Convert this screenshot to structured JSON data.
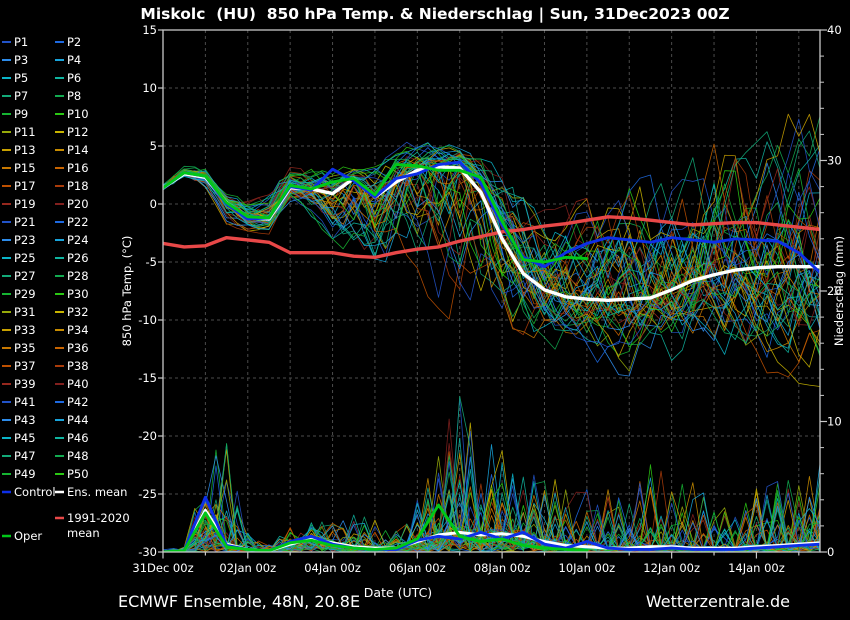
{
  "title": "Miskolc  (HU)  850 hPa Temp. & Niederschlag | Sun, 31Dec2023 00Z",
  "footer": {
    "left": "ECMWF Ensemble, 48N, 20.8E",
    "right": "Wetterzentrale.de"
  },
  "axes": {
    "x_title": "Date (UTC)",
    "x_tick_labels": [
      "31Dec 00z",
      "02Jan 00z",
      "04Jan 00z",
      "06Jan 00z",
      "08Jan 00z",
      "10Jan 00z",
      "12Jan 00z",
      "14Jan 00z"
    ],
    "y_left_title": "850 hPa Temp. (°C)",
    "y_left_ticks": [
      15,
      10,
      5,
      0,
      -5,
      -10,
      -15,
      -20,
      -25,
      -30
    ],
    "y_right_title": "Niederschlag (mm)",
    "y_right_ticks": [
      0,
      10,
      20,
      30,
      40
    ]
  },
  "legend": {
    "member_labels": [
      "P1",
      "P2",
      "P3",
      "P4",
      "P5",
      "P6",
      "P7",
      "P8",
      "P9",
      "P10",
      "P11",
      "P12",
      "P13",
      "P14",
      "P15",
      "P16",
      "P17",
      "P18",
      "P19",
      "P20",
      "P21",
      "P22",
      "P23",
      "P24",
      "P25",
      "P26",
      "P27",
      "P28",
      "P29",
      "P30",
      "P31",
      "P32",
      "P33",
      "P34",
      "P35",
      "P36",
      "P37",
      "P38",
      "P39",
      "P40",
      "P41",
      "P42",
      "P43",
      "P44",
      "P45",
      "P46",
      "P47",
      "P48",
      "P49",
      "P50"
    ],
    "control_label": "Control",
    "ens_mean_label": "Ens. mean",
    "climate_label_line1": "1991-2020",
    "climate_label_line2": "mean",
    "oper_label": "Oper"
  },
  "colors": {
    "background": "#000000",
    "frame": "#c8c8c8",
    "grid": "#4b4b4b",
    "text": "#ffffff",
    "control": "#0d2fe8",
    "ens_mean": "#ffffff",
    "climate": "#e84848",
    "oper": "#00c818",
    "member_palette": [
      "#2253c8",
      "#1e6ae1",
      "#2d8ceb",
      "#18a4dc",
      "#0ab4c8",
      "#0fb4a0",
      "#12aa78",
      "#12aa50",
      "#16b432",
      "#2bc814",
      "#96aa0a",
      "#c8b400",
      "#c8a000",
      "#c88c00",
      "#c87800",
      "#c86400",
      "#be5000",
      "#aa3c0a",
      "#96281e",
      "#82201e"
    ]
  },
  "chart_data": {
    "type": "line",
    "x_unit": "days since Sun 31Dec2023 00Z",
    "x_step_days": 0.5,
    "x_range_days": [
      0,
      15.5
    ],
    "temp_axis_range": [
      -30,
      15
    ],
    "precip_axis_range": [
      0,
      40
    ],
    "n_members": 50,
    "seed": 12345,
    "temp_series": {
      "ens_mean": [
        1.4,
        2.6,
        2.3,
        0.1,
        -1.2,
        -1.3,
        1.4,
        1.3,
        0.9,
        2.2,
        0.6,
        1.9,
        2.9,
        3.2,
        3.1,
        1.0,
        -3.0,
        -6.0,
        -7.4,
        -8.0,
        -8.2,
        -8.3,
        -8.2,
        -8.1,
        -7.4,
        -6.6,
        -6.1,
        -5.7,
        -5.5,
        -5.4,
        -5.4,
        -5.4
      ],
      "control": [
        1.4,
        2.7,
        2.4,
        0.0,
        -1.3,
        -1.2,
        1.5,
        1.2,
        3.0,
        2.0,
        0.6,
        2.2,
        2.6,
        3.4,
        3.6,
        1.8,
        -1.8,
        -4.6,
        -5.4,
        -4.2,
        -3.4,
        -2.9,
        -3.1,
        -3.3,
        -2.9,
        -3.1,
        -3.3,
        -3.0,
        -3.1,
        -3.2,
        -4.2,
        -5.9
      ],
      "oper": [
        1.4,
        2.7,
        2.4,
        0.1,
        -1.1,
        -1.2,
        1.6,
        1.3,
        1.9,
        2.2,
        0.8,
        3.4,
        3.3,
        2.9,
        2.9,
        2.3,
        -1.5,
        -4.8,
        -5.0,
        -4.6,
        -4.7
      ],
      "climate_mean_1991_2020": [
        -3.4,
        -3.7,
        -3.6,
        -2.9,
        -3.1,
        -3.3,
        -4.2,
        -4.2,
        -4.2,
        -4.5,
        -4.6,
        -4.2,
        -3.9,
        -3.7,
        -3.2,
        -2.8,
        -2.4,
        -2.2,
        -1.9,
        -1.7,
        -1.4,
        -1.1,
        -1.2,
        -1.4,
        -1.6,
        -1.8,
        -1.7,
        -1.6,
        -1.6,
        -1.8,
        -2.0,
        -2.2
      ],
      "envelope_min": [
        1.1,
        2.3,
        1.2,
        -1.8,
        -2.4,
        -2.6,
        0.2,
        -1.5,
        -3.0,
        -5.0,
        -6.5,
        -6.0,
        -7.0,
        -9.0,
        -11.0,
        -11.5,
        -12.5,
        -13.0,
        -13.5,
        -13.5,
        -14.0,
        -14.5,
        -15.0,
        -14.0,
        -15.0,
        -14.0,
        -13.5,
        -14.0,
        -15.0,
        -14.5,
        -15.5,
        -16.0
      ],
      "envelope_max": [
        1.8,
        3.4,
        3.0,
        0.9,
        0.4,
        0.8,
        3.2,
        3.0,
        3.2,
        3.4,
        4.4,
        5.2,
        5.6,
        5.6,
        5.0,
        4.2,
        3.0,
        1.5,
        0.5,
        0.0,
        0.5,
        1.0,
        2.0,
        2.5,
        3.0,
        4.0,
        8.0,
        10.5,
        6.0,
        7.0,
        8.5,
        9.0
      ]
    },
    "precip_series": {
      "ens_mean": [
        0.0,
        0.1,
        3.2,
        0.6,
        0.2,
        0.1,
        0.6,
        1.0,
        0.7,
        0.4,
        0.3,
        0.3,
        0.8,
        1.3,
        1.5,
        1.3,
        1.4,
        1.2,
        0.8,
        0.5,
        0.4,
        0.3,
        0.3,
        0.4,
        0.4,
        0.3,
        0.3,
        0.3,
        0.4,
        0.5,
        0.6,
        0.7
      ],
      "control": [
        0.0,
        0.1,
        4.2,
        0.5,
        0.2,
        0.1,
        0.8,
        1.2,
        0.6,
        0.3,
        0.2,
        0.2,
        0.9,
        1.2,
        1.0,
        1.5,
        1.0,
        1.5,
        0.6,
        0.3,
        0.8,
        0.3,
        0.2,
        0.2,
        0.3,
        0.2,
        0.2,
        0.2,
        0.3,
        0.4,
        0.5,
        0.6
      ],
      "oper": [
        0.0,
        0.1,
        3.0,
        0.4,
        0.2,
        0.1,
        0.7,
        0.9,
        0.5,
        0.3,
        0.2,
        0.3,
        1.0,
        3.6,
        1.2,
        0.8,
        1.0,
        0.5,
        0.3,
        0.2,
        0.1
      ],
      "envelope_max": [
        0.2,
        0.4,
        6.5,
        9.5,
        1.5,
        0.6,
        2.0,
        2.6,
        2.2,
        3.0,
        2.6,
        1.6,
        4.0,
        8.5,
        12.0,
        9.0,
        8.5,
        6.0,
        6.5,
        5.0,
        5.0,
        5.0,
        4.0,
        7.0,
        6.5,
        6.0,
        4.0,
        3.0,
        5.0,
        5.5,
        6.0,
        7.5
      ]
    }
  }
}
